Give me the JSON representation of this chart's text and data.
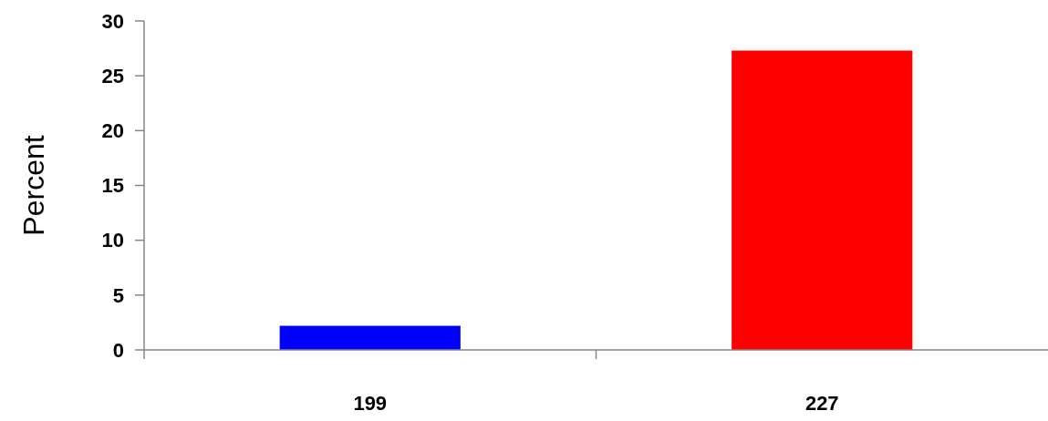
{
  "chart_data": {
    "type": "bar",
    "ylabel": "Percent",
    "categories": [
      "199",
      "227"
    ],
    "values": [
      2.2,
      27.3
    ],
    "colors": [
      "#0000ff",
      "#ff0000"
    ],
    "ylim": [
      0,
      30
    ],
    "yticks": [
      0,
      5,
      10,
      15,
      20,
      25,
      30
    ],
    "grid": false
  }
}
